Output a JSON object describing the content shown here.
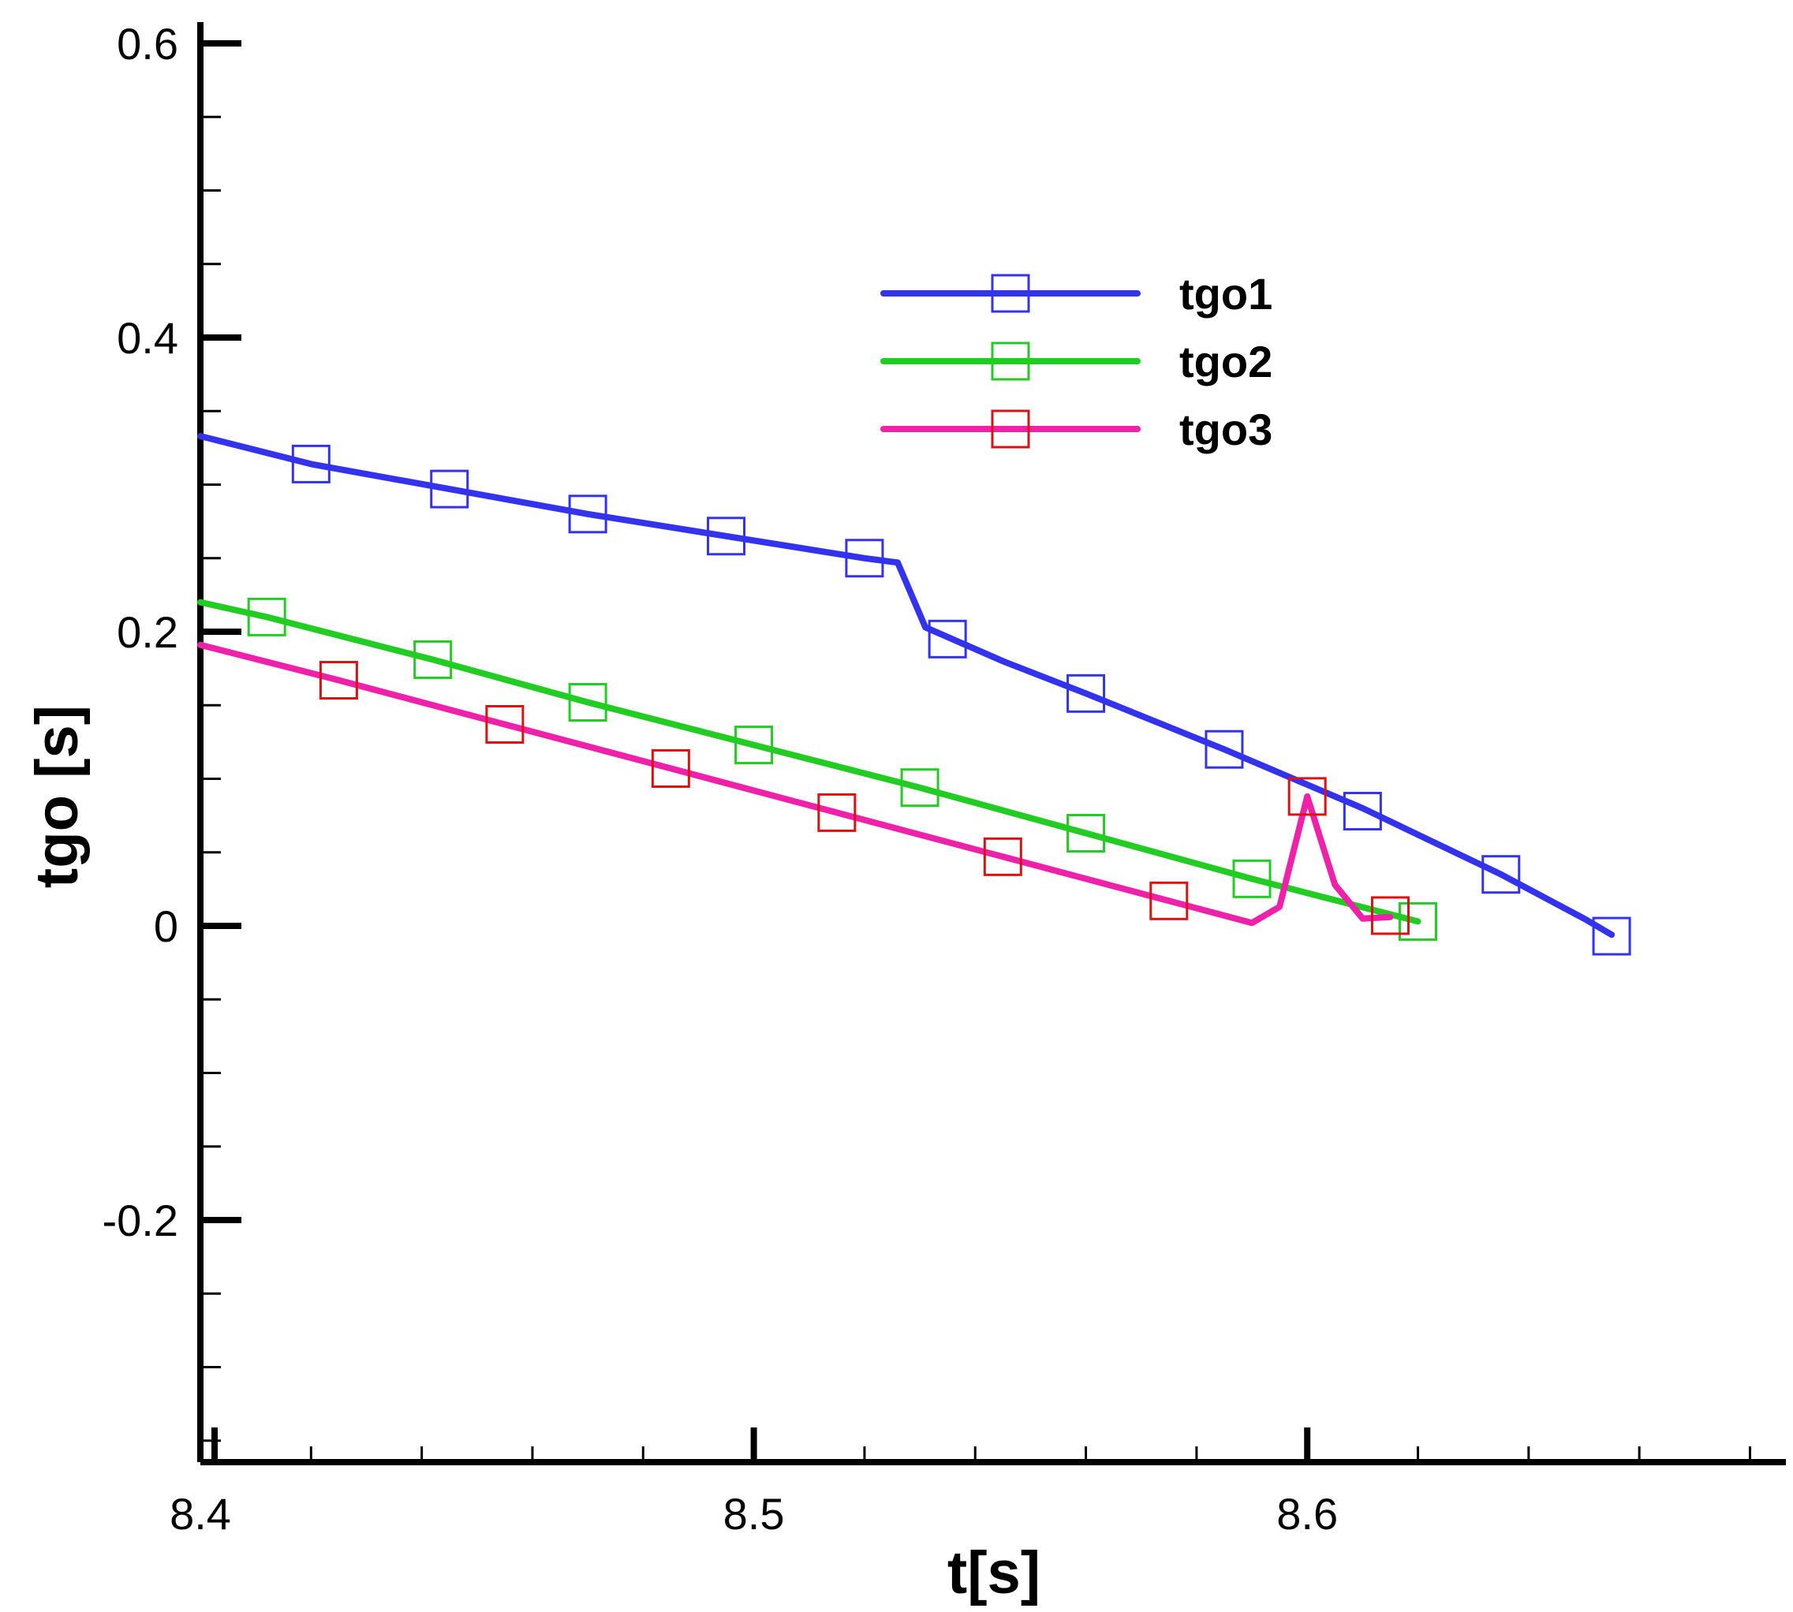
{
  "chart_data": {
    "type": "line",
    "title": "",
    "xlabel": "t[s]",
    "ylabel": "tgo [s]",
    "xlim": [
      8.4,
      8.68
    ],
    "ylim": [
      -0.36,
      0.61
    ],
    "x_ticks": [
      {
        "value": 8.4,
        "label": "8.4"
      },
      {
        "value": 8.5,
        "label": "8.5"
      },
      {
        "value": 8.6,
        "label": "8.6"
      }
    ],
    "y_ticks": [
      {
        "value": -0.2,
        "label": "-0.2"
      },
      {
        "value": 0,
        "label": "0"
      },
      {
        "value": 0.2,
        "label": "0.2"
      },
      {
        "value": 0.4,
        "label": "0.4"
      },
      {
        "value": 0.6,
        "label": "0.6"
      }
    ],
    "x_minor_step": 0.02,
    "y_minor_step": 0.05,
    "grid": false,
    "legend": {
      "position": "top-right",
      "marker": "square"
    },
    "series": [
      {
        "name": "tgo1",
        "color": "#3333ee",
        "line": [
          [
            8.4,
            0.333
          ],
          [
            8.42,
            0.314
          ],
          [
            8.445,
            0.297
          ],
          [
            8.47,
            0.28
          ],
          [
            8.495,
            0.265
          ],
          [
            8.52,
            0.25
          ],
          [
            8.526,
            0.247
          ],
          [
            8.531,
            0.203
          ],
          [
            8.545,
            0.18
          ],
          [
            8.56,
            0.158
          ],
          [
            8.585,
            0.12
          ],
          [
            8.61,
            0.08
          ],
          [
            8.635,
            0.035
          ],
          [
            8.65,
            0.005
          ],
          [
            8.655,
            -0.006
          ]
        ],
        "markers": [
          [
            8.42,
            0.314
          ],
          [
            8.445,
            0.297
          ],
          [
            8.47,
            0.28
          ],
          [
            8.495,
            0.265
          ],
          [
            8.52,
            0.25
          ],
          [
            8.535,
            0.195
          ],
          [
            8.56,
            0.158
          ],
          [
            8.585,
            0.12
          ],
          [
            8.61,
            0.078
          ],
          [
            8.635,
            0.035
          ],
          [
            8.655,
            -0.007
          ]
        ]
      },
      {
        "name": "tgo2",
        "color": "#22cc22",
        "line": [
          [
            8.4,
            0.22
          ],
          [
            8.412,
            0.21
          ],
          [
            8.442,
            0.181
          ],
          [
            8.47,
            0.152
          ],
          [
            8.5,
            0.123
          ],
          [
            8.53,
            0.094
          ],
          [
            8.56,
            0.063
          ],
          [
            8.59,
            0.032
          ],
          [
            8.62,
            0.003
          ]
        ],
        "markers": [
          [
            8.412,
            0.21
          ],
          [
            8.442,
            0.181
          ],
          [
            8.47,
            0.152
          ],
          [
            8.5,
            0.123
          ],
          [
            8.53,
            0.094
          ],
          [
            8.56,
            0.063
          ],
          [
            8.59,
            0.032
          ],
          [
            8.62,
            0.003
          ]
        ]
      },
      {
        "name": "tgo3",
        "color": "#ee22aa",
        "marker_color": "#dd1111",
        "line": [
          [
            8.4,
            0.191
          ],
          [
            8.425,
            0.167
          ],
          [
            8.455,
            0.137
          ],
          [
            8.485,
            0.107
          ],
          [
            8.515,
            0.077
          ],
          [
            8.545,
            0.047
          ],
          [
            8.575,
            0.017
          ],
          [
            8.59,
            0.002
          ],
          [
            8.595,
            0.013
          ],
          [
            8.6,
            0.088
          ],
          [
            8.605,
            0.028
          ],
          [
            8.61,
            0.005
          ],
          [
            8.615,
            0.006
          ]
        ],
        "markers": [
          [
            8.425,
            0.167
          ],
          [
            8.455,
            0.137
          ],
          [
            8.485,
            0.107
          ],
          [
            8.515,
            0.077
          ],
          [
            8.545,
            0.047
          ],
          [
            8.575,
            0.017
          ],
          [
            8.6,
            0.088
          ],
          [
            8.615,
            0.007
          ]
        ]
      }
    ]
  }
}
